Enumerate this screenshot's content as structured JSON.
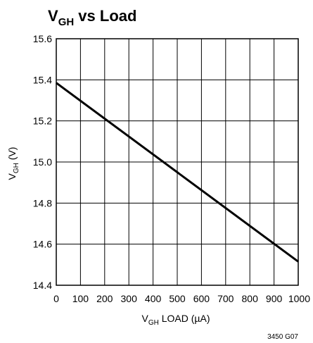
{
  "chart_data": {
    "type": "line",
    "title": {
      "main": "V",
      "sub": "GH",
      "rest": " vs Load"
    },
    "xlabel": {
      "main": "V",
      "sub": "GH",
      "rest": " LOAD (µA)"
    },
    "ylabel": {
      "main": "V",
      "sub": "GH",
      "rest": " (V)"
    },
    "x_ticks": [
      0,
      100,
      200,
      300,
      400,
      500,
      600,
      700,
      800,
      900,
      1000
    ],
    "x_tick_labels": [
      "0",
      "100",
      "200",
      "300",
      "400",
      "500",
      "600",
      "700",
      "800",
      "900",
      "1000"
    ],
    "y_ticks": [
      14.4,
      14.6,
      14.8,
      15.0,
      15.2,
      15.4,
      15.6
    ],
    "y_tick_labels": [
      "14.4",
      "14.6",
      "14.8",
      "15.0",
      "15.2",
      "15.4",
      "15.6"
    ],
    "xlim": [
      0,
      1000
    ],
    "ylim": [
      14.4,
      15.6
    ],
    "grid": true,
    "series": [
      {
        "x": [
          0,
          1000
        ],
        "y": [
          15.385,
          14.515
        ]
      }
    ],
    "figure_code": "3450 G07",
    "colors": {
      "line": "#000000",
      "grid": "#000000",
      "background": "#ffffff"
    }
  }
}
